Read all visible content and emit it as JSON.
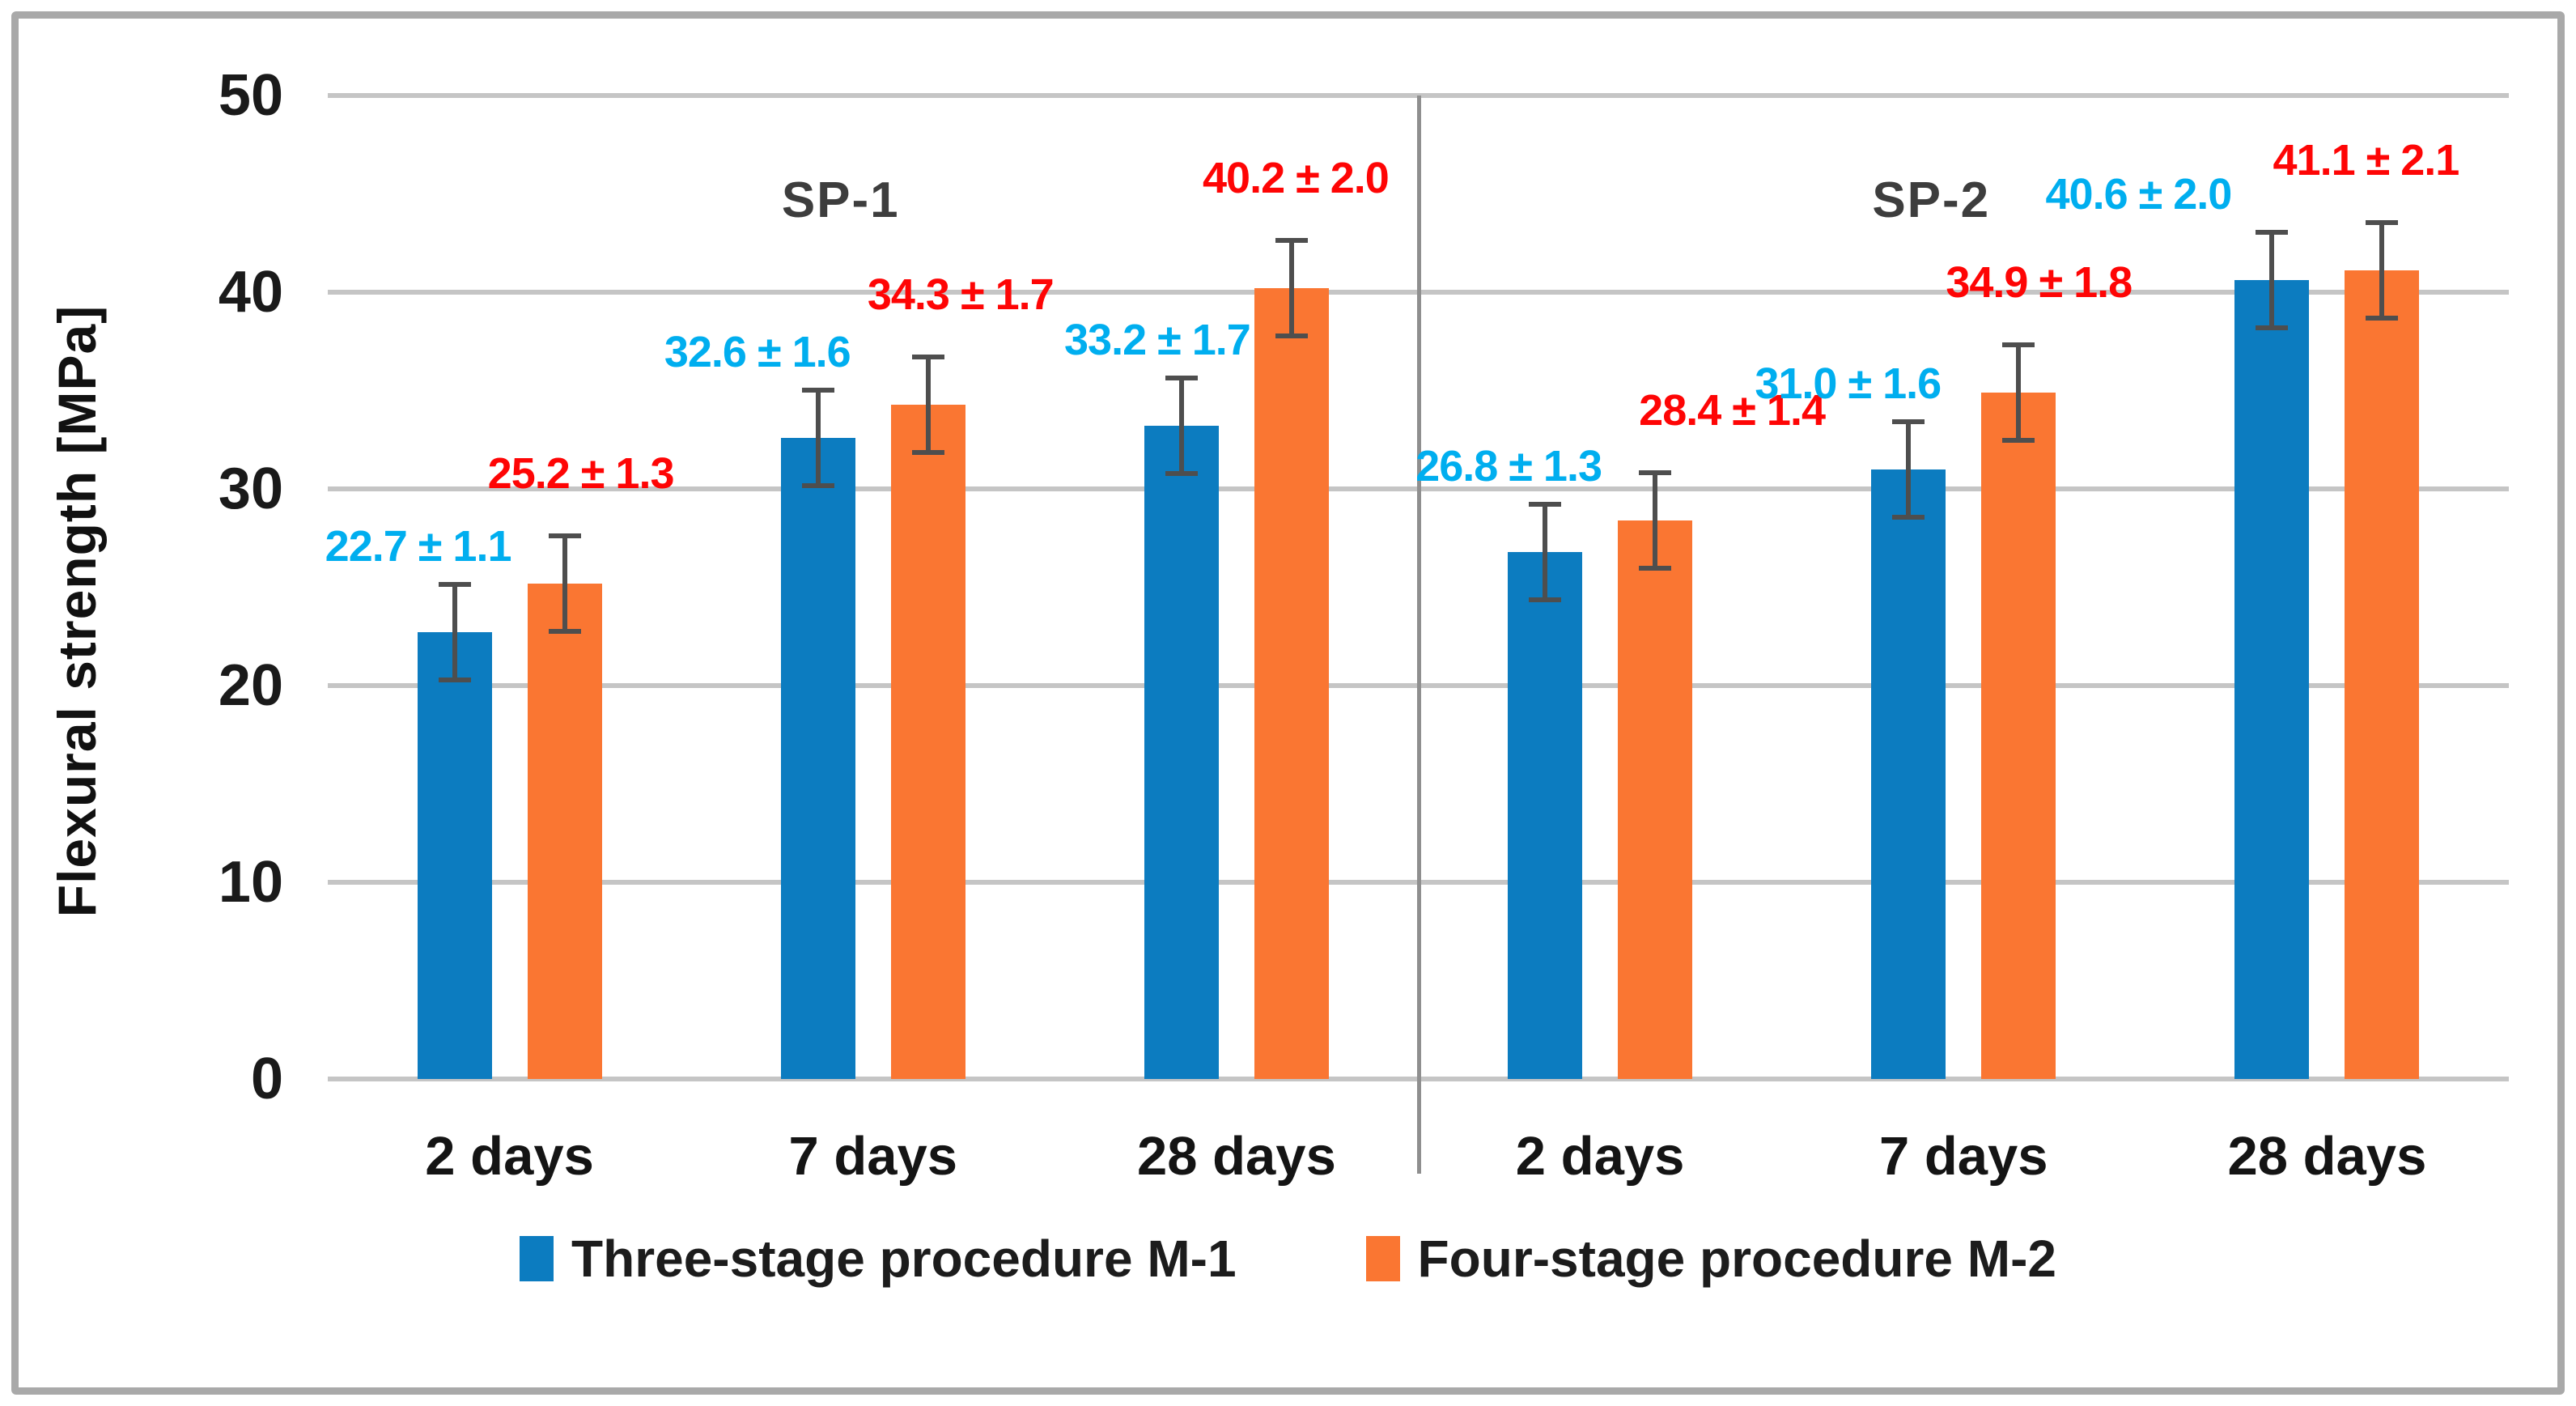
{
  "chart_data": {
    "type": "bar",
    "title": "",
    "ylabel": "Flexural strength [MPa]",
    "ylim": [
      0,
      50
    ],
    "yticks": [
      0,
      10,
      20,
      30,
      40,
      50
    ],
    "grid": true,
    "legend_position": "bottom",
    "categories": [
      "2 days",
      "7 days",
      "28 days",
      "2 days",
      "7 days",
      "28 days"
    ],
    "sections": [
      {
        "label": "SP-1",
        "span": [
          0,
          2
        ]
      },
      {
        "label": "SP-2",
        "span": [
          3,
          5
        ]
      }
    ],
    "series": [
      {
        "name": "Three-stage procedure M-1",
        "color": "#0C7CC0",
        "label_color": "#00AEEF",
        "values": [
          22.7,
          32.6,
          33.2,
          26.8,
          31.0,
          40.6
        ],
        "errors": [
          1.1,
          1.6,
          1.7,
          1.3,
          1.6,
          2.0
        ],
        "data_labels": [
          "22.7 ± 1.1",
          "32.6 ± 1.6",
          "33.2 ± 1.7",
          "26.8 ± 1.3",
          "31.0 ± 1.6",
          "40.6 ± 2.0"
        ]
      },
      {
        "name": "Four-stage procedure M-2",
        "color": "#FA7632",
        "label_color": "#FE0505",
        "values": [
          25.2,
          34.3,
          40.2,
          28.4,
          34.9,
          41.1
        ],
        "errors": [
          1.3,
          1.7,
          2.0,
          1.4,
          1.8,
          2.1
        ],
        "data_labels": [
          "25.2 ± 1.3",
          "34.3 ± 1.7",
          "40.2 ± 2.0",
          "28.4 ± 1.4",
          "34.9 ± 1.8",
          "41.1 ± 2.1"
        ]
      }
    ],
    "colors": {
      "gridline": "#C5C5C5",
      "section_divider": "#8F8F8F",
      "error_bar": "#4E4E4E",
      "axis_text": "#1A1A1A",
      "section_title": "#3D3D3D",
      "frame_border": "#A9A9A9"
    }
  }
}
